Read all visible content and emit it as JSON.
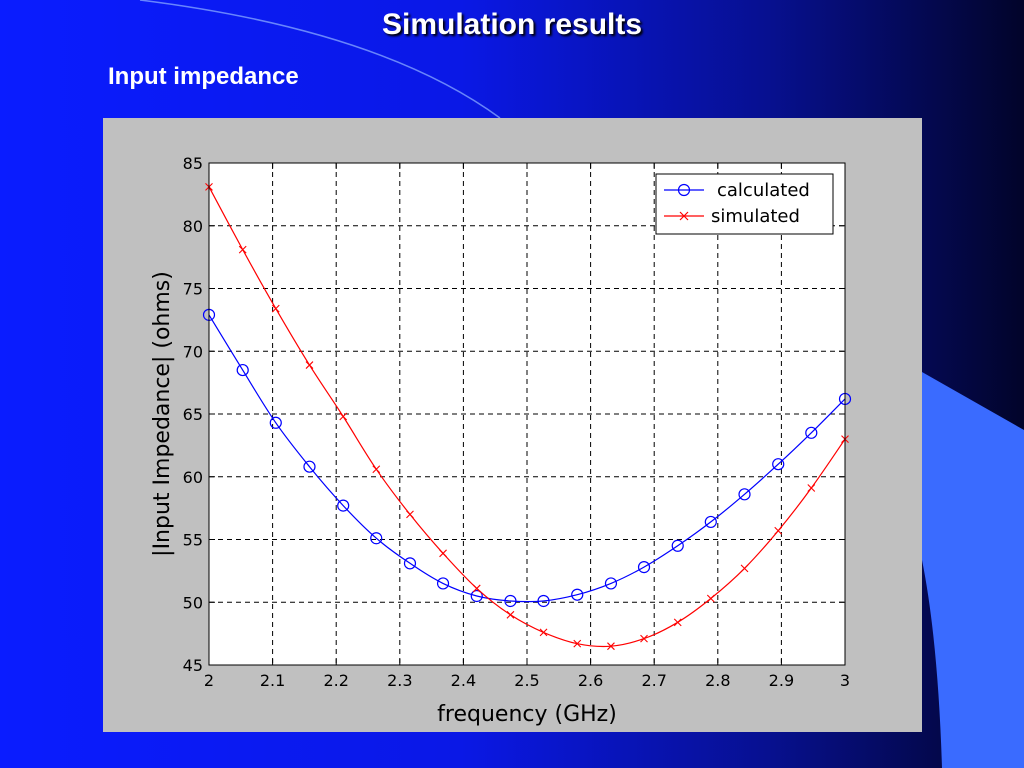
{
  "slide": {
    "title": "Simulation results",
    "subtitle": "Input impedance"
  },
  "colors": {
    "background": "#0a1cff",
    "figure_bg": "#c0c0c0",
    "calculated": "#0000ff",
    "simulated": "#ff0000"
  },
  "chart_data": {
    "type": "line",
    "xlabel": "frequency (GHz)",
    "ylabel": "|Input Impedance| (ohms)",
    "xlim": [
      2,
      3
    ],
    "ylim": [
      45,
      85
    ],
    "xticks": [
      2,
      2.1,
      2.2,
      2.3,
      2.4,
      2.5,
      2.6,
      2.7,
      2.8,
      2.9,
      3
    ],
    "xtick_labels": [
      "2",
      "2.1",
      "2.2",
      "2.3",
      "2.4",
      "2.5",
      "2.6",
      "2.7",
      "2.8",
      "2.9",
      "3"
    ],
    "yticks": [
      45,
      50,
      55,
      60,
      65,
      70,
      75,
      80,
      85
    ],
    "ytick_labels": [
      "45",
      "50",
      "55",
      "60",
      "65",
      "70",
      "75",
      "80",
      "85"
    ],
    "grid": true,
    "legend_position": "top-right",
    "series": [
      {
        "name": "calculated",
        "color": "#0000ff",
        "marker": "circle",
        "x": [
          2.0,
          2.053,
          2.105,
          2.158,
          2.211,
          2.263,
          2.316,
          2.368,
          2.421,
          2.474,
          2.526,
          2.579,
          2.632,
          2.684,
          2.737,
          2.789,
          2.842,
          2.895,
          2.947,
          3.0
        ],
        "y": [
          72.9,
          68.5,
          64.3,
          60.8,
          57.7,
          55.1,
          53.1,
          51.5,
          50.5,
          50.1,
          50.1,
          50.6,
          51.5,
          52.8,
          54.5,
          56.4,
          58.6,
          61.0,
          63.5,
          66.2
        ]
      },
      {
        "name": "simulated",
        "color": "#ff0000",
        "marker": "x",
        "x": [
          2.0,
          2.053,
          2.105,
          2.158,
          2.211,
          2.263,
          2.316,
          2.368,
          2.421,
          2.474,
          2.526,
          2.579,
          2.632,
          2.684,
          2.737,
          2.789,
          2.842,
          2.895,
          2.947,
          3.0
        ],
        "y": [
          83.1,
          78.1,
          73.4,
          68.9,
          64.8,
          60.6,
          57.0,
          53.9,
          51.1,
          49.0,
          47.6,
          46.7,
          46.5,
          47.1,
          48.4,
          50.3,
          52.7,
          55.7,
          59.1,
          63.0
        ]
      }
    ]
  }
}
